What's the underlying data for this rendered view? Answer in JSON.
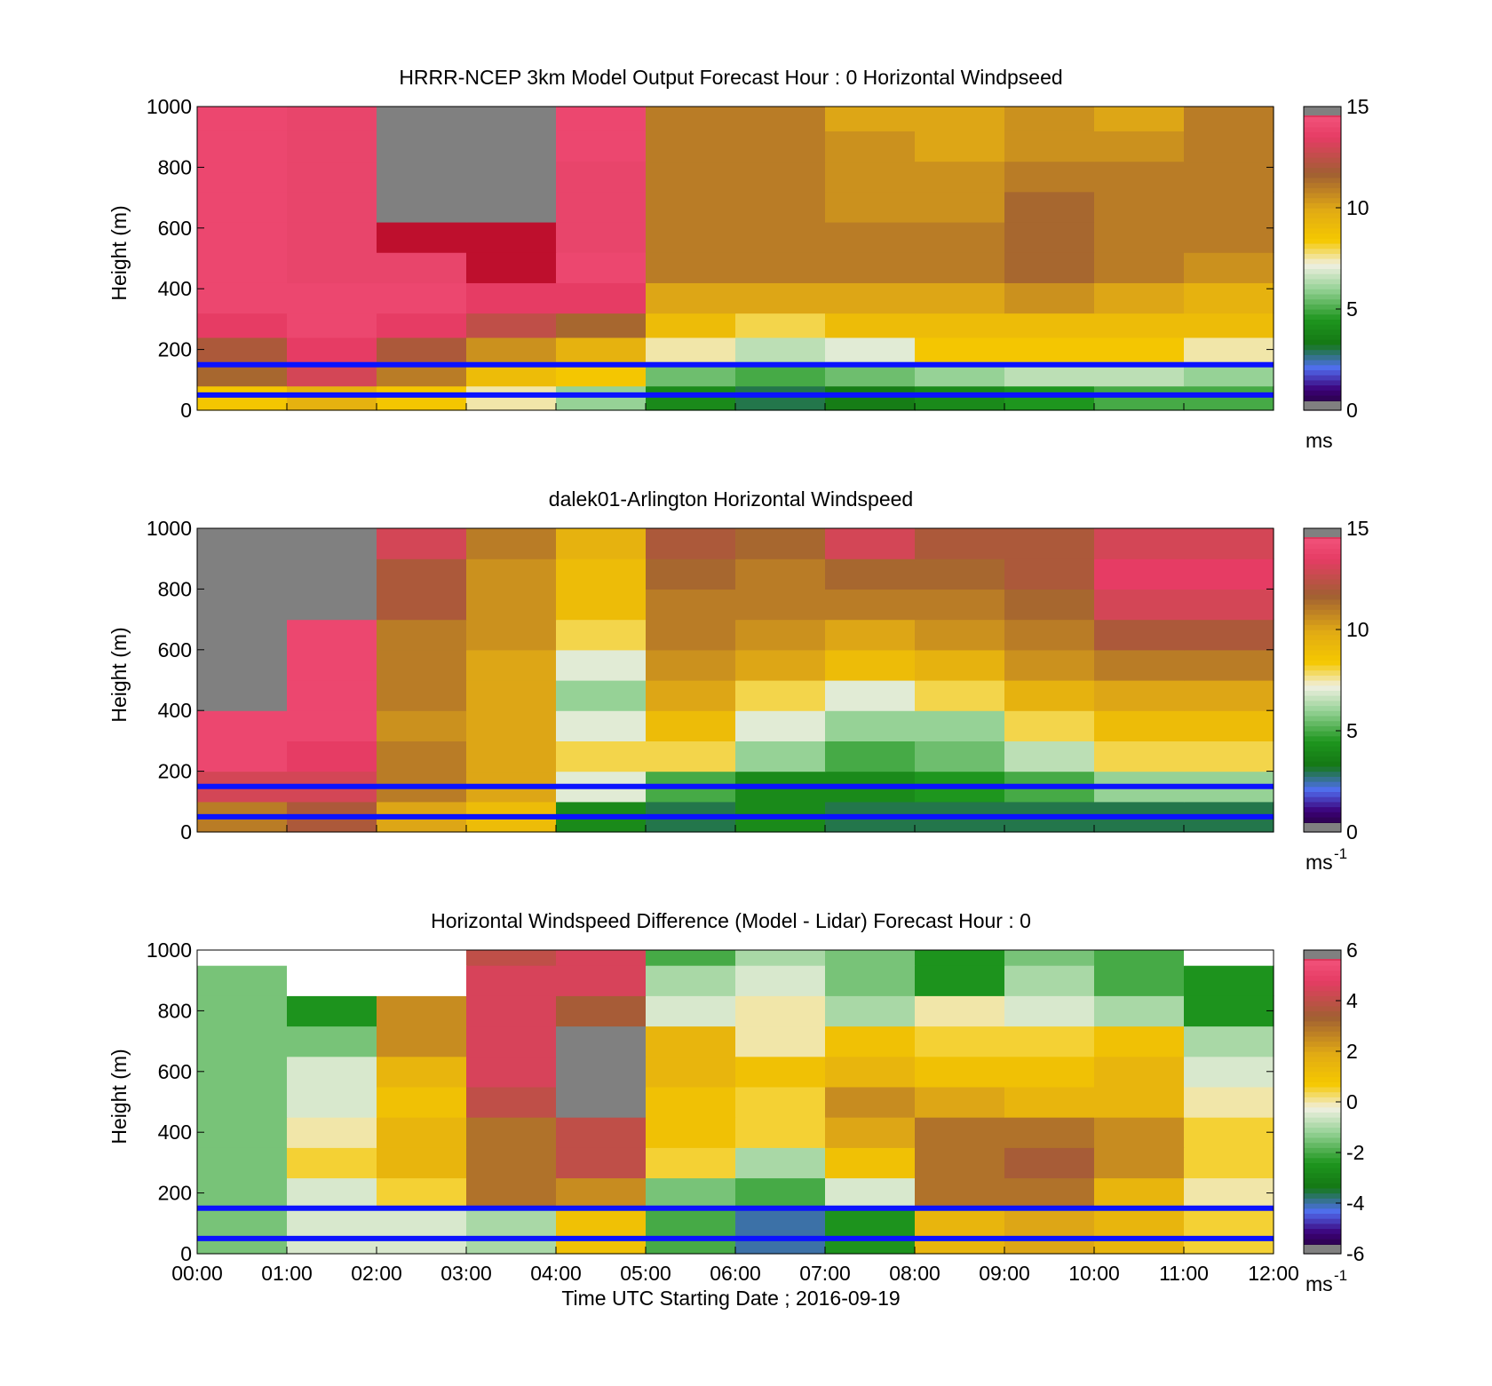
{
  "figure": {
    "xlabel": "Time UTC  Starting Date ; 2016-09-19"
  },
  "chart_data": [
    {
      "type": "heatmap",
      "title": "HRRR-NCEP 3km Model Output   Forecast Hour : 0 Horizontal Windpseed",
      "ylabel": "Height (m)",
      "ylim": [
        0,
        1000
      ],
      "yticks": [
        "0",
        "200",
        "400",
        "600",
        "800",
        "1000"
      ],
      "xticks": [],
      "colorbar": {
        "min": 0,
        "max": 15,
        "ticks": [
          "0",
          "5",
          "10",
          "15"
        ],
        "unit": "ms"
      },
      "rows": [
        {
          "height": 0,
          "values": [
            8.5,
            9.5,
            8.5,
            7.5,
            6,
            4,
            3,
            3.5,
            4,
            4.5,
            5,
            5
          ]
        },
        {
          "height": 80,
          "values": [
            11.5,
            13,
            11,
            9,
            8.5,
            5.5,
            5,
            5.5,
            6,
            6.5,
            6.5,
            6
          ]
        },
        {
          "height": 160,
          "values": [
            12,
            13.5,
            12,
            10.5,
            9.5,
            7.5,
            6.5,
            7,
            8.5,
            8.5,
            8.5,
            7.5
          ]
        },
        {
          "height": 240,
          "values": [
            13.5,
            14,
            13.5,
            12.5,
            11.5,
            9,
            8,
            9,
            9,
            9,
            9,
            9
          ]
        },
        {
          "height": 320,
          "values": [
            14,
            14,
            14,
            13.5,
            13.5,
            10,
            10,
            10,
            10,
            10.5,
            10,
            9.5
          ]
        },
        {
          "height": 420,
          "values": [
            14,
            14.5,
            14.5,
            15,
            14,
            11,
            11,
            11,
            11,
            11.5,
            11,
            10.5
          ]
        },
        {
          "height": 520,
          "values": [
            14,
            14.5,
            15,
            15,
            14.5,
            11,
            11,
            11,
            11,
            11.5,
            11,
            11
          ]
        },
        {
          "height": 620,
          "values": [
            14,
            14.5,
            null,
            null,
            14.5,
            11,
            11,
            10.5,
            10.5,
            11.5,
            11,
            11
          ]
        },
        {
          "height": 720,
          "values": [
            14,
            14.5,
            null,
            null,
            14.5,
            11,
            11,
            10.5,
            10.5,
            11,
            11,
            11
          ]
        },
        {
          "height": 820,
          "values": [
            14,
            14.5,
            null,
            null,
            14,
            11,
            11,
            10.5,
            10,
            10.5,
            10.5,
            11
          ]
        },
        {
          "height": 920,
          "values": [
            14,
            14.5,
            null,
            null,
            14,
            11,
            11,
            10,
            10,
            10.5,
            10,
            11
          ]
        }
      ],
      "reference_lines_m": [
        50,
        150
      ]
    },
    {
      "type": "heatmap",
      "title": "dalek01-Arlington  Horizontal Windspeed",
      "ylabel": "Height (m)",
      "ylim": [
        0,
        1000
      ],
      "yticks": [
        "0",
        "200",
        "400",
        "600",
        "800",
        "1000"
      ],
      "xticks": [],
      "colorbar": {
        "min": 0,
        "max": 15,
        "ticks": [
          "0",
          "5",
          "10",
          "15"
        ],
        "unit": "ms",
        "unit_sup": "-1"
      },
      "rows": [
        {
          "height": 0,
          "values": [
            11,
            12,
            10,
            9,
            4,
            3,
            4,
            3,
            3,
            3,
            3,
            3
          ]
        },
        {
          "height": 100,
          "values": [
            13,
            13,
            11,
            10,
            7,
            5,
            4,
            4,
            4.5,
            5,
            6,
            6
          ]
        },
        {
          "height": 200,
          "values": [
            14,
            13.5,
            11,
            10,
            8,
            8,
            6,
            5,
            5.5,
            6.5,
            8,
            8
          ]
        },
        {
          "height": 300,
          "values": [
            14,
            14,
            10.5,
            10,
            7,
            9,
            7,
            6,
            6,
            8,
            9,
            9
          ]
        },
        {
          "height": 400,
          "values": [
            null,
            14,
            11,
            10,
            6,
            10,
            8,
            7,
            8,
            9.5,
            10,
            10
          ]
        },
        {
          "height": 500,
          "values": [
            null,
            14,
            11,
            10,
            7,
            10.5,
            10,
            9,
            9.5,
            10.5,
            11,
            11
          ]
        },
        {
          "height": 600,
          "values": [
            null,
            14,
            11,
            10.5,
            8,
            11,
            10.5,
            10,
            10.5,
            11,
            12,
            12
          ]
        },
        {
          "height": 700,
          "values": [
            null,
            null,
            12,
            10.5,
            9,
            11,
            11,
            11,
            11,
            11.5,
            13,
            13
          ]
        },
        {
          "height": 800,
          "values": [
            null,
            null,
            12,
            10.5,
            9,
            11.5,
            11,
            11.5,
            11.5,
            12,
            13.5,
            13.5
          ]
        },
        {
          "height": 900,
          "values": [
            null,
            null,
            13,
            11,
            9.5,
            12,
            11.5,
            13,
            12,
            12,
            13,
            13
          ]
        }
      ],
      "reference_lines_m": [
        50,
        150
      ]
    },
    {
      "type": "heatmap",
      "title": "Horizontal Windspeed Difference (Model - Lidar) Forecast Hour : 0",
      "ylabel": "Height (m)",
      "xlabel": "Time UTC  Starting Date ; 2016-09-19",
      "ylim": [
        0,
        1000
      ],
      "yticks": [
        "0",
        "200",
        "400",
        "600",
        "800",
        "1000"
      ],
      "xticks": [
        "00:00",
        "01:00",
        "02:00",
        "03:00",
        "04:00",
        "05:00",
        "06:00",
        "07:00",
        "08:00",
        "09:00",
        "10:00",
        "11:00",
        "12:00"
      ],
      "colorbar": {
        "min": -6,
        "max": 6,
        "ticks": [
          "-6",
          "-4",
          "-2",
          "0",
          "2",
          "4",
          "6"
        ],
        "unit": "ms",
        "unit_sup": "-1"
      },
      "rows": [
        {
          "height": 0,
          "values": [
            -1.5,
            -0.5,
            -0.5,
            -1,
            1,
            -2,
            -4,
            -2.5,
            1.5,
            2,
            1.5,
            0.5
          ]
        },
        {
          "height": 150,
          "values": [
            -1.5,
            -0.5,
            0.5,
            3,
            2.5,
            -1.5,
            -2,
            -0.5,
            3,
            3,
            1.5,
            0
          ]
        },
        {
          "height": 250,
          "values": [
            -1.5,
            0.5,
            1.5,
            3,
            4,
            0.5,
            -1,
            1,
            3,
            3.5,
            2.5,
            0.5
          ]
        },
        {
          "height": 350,
          "values": [
            -1.5,
            0,
            1.5,
            3,
            4,
            1,
            0.5,
            2,
            3,
            3,
            2.5,
            0.5
          ]
        },
        {
          "height": 450,
          "values": [
            -1.5,
            -0.5,
            1,
            4,
            null,
            1,
            0.5,
            2.5,
            2,
            1.5,
            1.5,
            0
          ]
        },
        {
          "height": 550,
          "values": [
            -1.5,
            -0.5,
            1.5,
            4.5,
            null,
            1.5,
            1,
            1.5,
            1,
            1,
            1.5,
            -0.5
          ]
        },
        {
          "height": 650,
          "values": [
            -1.5,
            -1.5,
            2.5,
            4.5,
            null,
            1.5,
            0,
            1,
            0.5,
            0.5,
            1,
            -1
          ]
        },
        {
          "height": 750,
          "values": [
            -1.5,
            -2.5,
            2.5,
            4.5,
            3.5,
            -0.5,
            0,
            -1,
            0,
            -0.5,
            -1,
            -2.5
          ]
        },
        {
          "height": 850,
          "values": [
            -1.5,
            null,
            null,
            4.5,
            4.5,
            -1,
            -0.5,
            -1.5,
            -2.5,
            -1,
            -2,
            -2.5
          ]
        },
        {
          "height": 950,
          "values": [
            null,
            null,
            null,
            4,
            4.5,
            -2,
            -1,
            -1.5,
            -2.5,
            -1.5,
            -2,
            null
          ]
        }
      ],
      "reference_lines_m": [
        50,
        150
      ]
    }
  ]
}
